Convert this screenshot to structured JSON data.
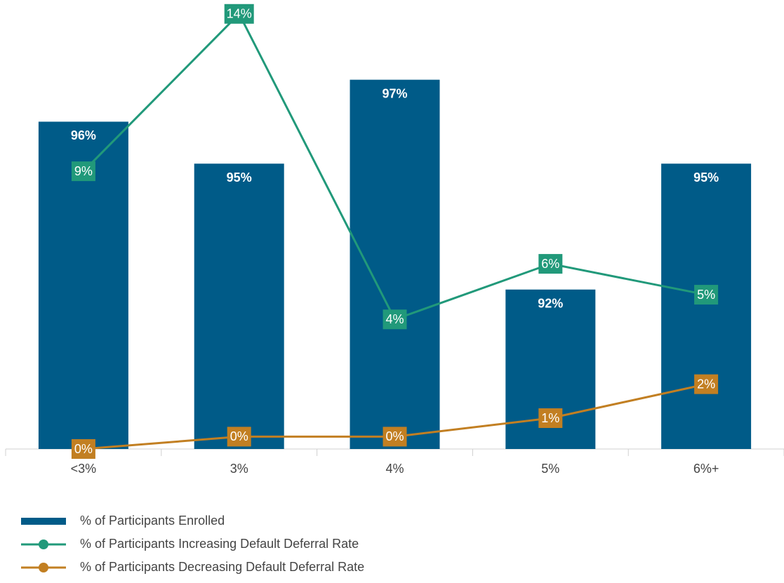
{
  "chart_data": {
    "type": "bar",
    "categories": [
      "<3%",
      "3%",
      "4%",
      "5%",
      "6%+"
    ],
    "series": [
      {
        "name": "% of Participants Enrolled",
        "type": "bar",
        "color": "#005b88",
        "values": [
          96,
          95,
          97,
          92,
          95
        ],
        "value_labels": [
          "96%",
          "95%",
          "97%",
          "92%",
          "95%"
        ]
      },
      {
        "name": "% of Participants Increasing Default Deferral Rate",
        "type": "line",
        "axis": "y2",
        "color": "#21997a",
        "values": [
          9.0,
          14.1,
          4.2,
          6.0,
          5.0
        ],
        "value_labels": [
          "9%",
          "14%",
          "4%",
          "6%",
          "5%"
        ]
      },
      {
        "name": "% of Participants Decreasing Default Deferral Rate",
        "type": "line",
        "axis": "y2",
        "color": "#c27f22",
        "values": [
          0.0,
          0.4,
          0.4,
          1.0,
          2.1
        ],
        "value_labels": [
          "0%",
          "0%",
          "0%",
          "1%",
          "2%"
        ]
      }
    ],
    "ylim": [
      88.2,
      98.9
    ],
    "y2lim": [
      0,
      14.55
    ]
  }
}
